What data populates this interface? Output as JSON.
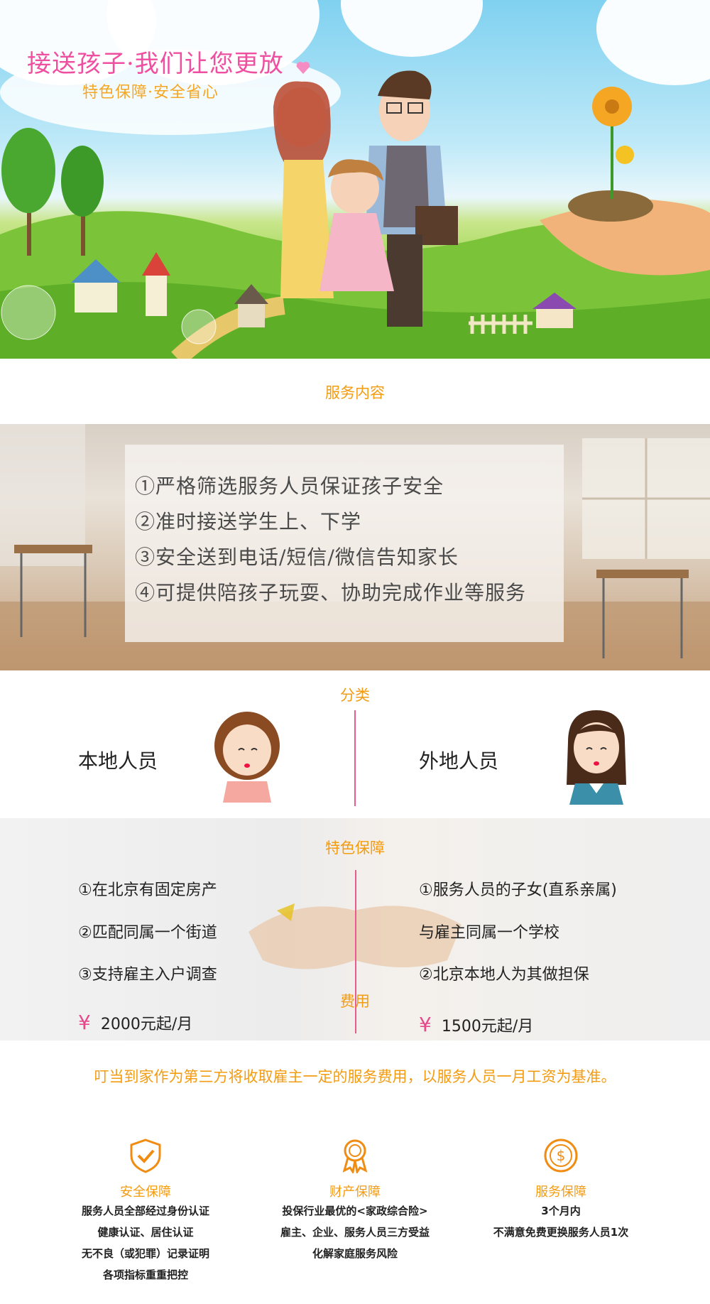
{
  "hero": {
    "title": "接送孩子·我们让您更放",
    "subtitle": "特色保障·安全省心"
  },
  "service": {
    "title": "服务内容",
    "items": [
      "①严格筛选服务人员保证孩子安全",
      "②准时接送学生上、下学",
      "③安全送到电话/短信/微信告知家长",
      "④可提供陪孩子玩耍、协助完成作业等服务"
    ]
  },
  "classification": {
    "title": "分类",
    "local": "本地人员",
    "nonlocal": "外地人员"
  },
  "guarantee": {
    "title": "特色保障",
    "left": [
      "①在北京有固定房产",
      "②匹配同属一个街道",
      "③支持雇主入户调查"
    ],
    "right": [
      "①服务人员的子女(直系亲属)",
      "与雇主同属一个学校",
      "②北京本地人为其做担保"
    ]
  },
  "fee": {
    "title": "费用",
    "currency": "¥",
    "local_price": "2000元起/月",
    "nonlocal_price": "1500元起/月",
    "note": "叮当到家作为第三方将收取雇主一定的服务费用，以服务人员一月工资为基准。"
  },
  "features": [
    {
      "icon": "shield-check-icon",
      "title": "安全保障",
      "lines": [
        "服务人员全部经过身份认证",
        "健康认证、居住认证",
        "无不良（或犯罪）记录证明",
        "各项指标重重把控"
      ]
    },
    {
      "icon": "award-medal-icon",
      "title": "财产保障",
      "lines": [
        "投保行业最优的<家政综合险>",
        "雇主、企业、服务人员三方受益",
        "化解家庭服务风险"
      ]
    },
    {
      "icon": "dollar-coin-icon",
      "title": "服务保障",
      "lines": [
        "3个月内",
        "不满意免费更换服务人员1次"
      ]
    }
  ],
  "colors": {
    "accent": "#f39c12",
    "pink": "#ea5a8e",
    "title_pink": "#ef4fa0"
  }
}
